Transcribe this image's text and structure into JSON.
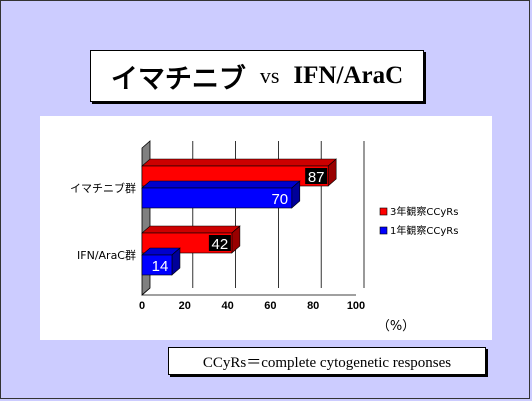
{
  "title": {
    "main": "イマチニブ",
    "vs": "vs",
    "sub": "IFN/AraC"
  },
  "footnote": "CCyRs＝complete cytogenetic responses",
  "chart_data": {
    "type": "bar",
    "orientation": "horizontal",
    "categories": [
      "イマチニブ群",
      "IFN/AraC群"
    ],
    "series": [
      {
        "name": "3年観察CCyRs",
        "values": [
          87,
          42
        ],
        "color": "#ff0000"
      },
      {
        "name": "1年観察CCyRs",
        "values": [
          70,
          14
        ],
        "color": "#0000ff"
      }
    ],
    "xlim": [
      0,
      100
    ],
    "xticks": [
      "0",
      "20",
      "40",
      "60",
      "80",
      "100"
    ],
    "unit_label": "（%）",
    "grid": true,
    "legend_position": "right"
  }
}
